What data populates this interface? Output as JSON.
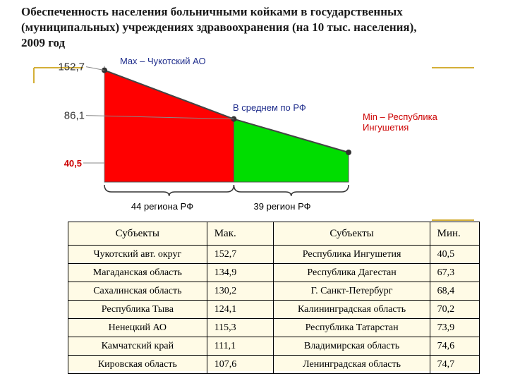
{
  "title_lines": [
    "Обеспеченность населения больничными койками в государственных",
    "(муниципальных) учреждениях здравоохранения (на 10 тыс. населения),",
    "2009 год"
  ],
  "chart_data": {
    "type": "area",
    "ylim": [
      0,
      160
    ],
    "x": [
      0,
      44,
      83
    ],
    "values": [
      152.7,
      86.1,
      40.5
    ],
    "tick_labels": [
      "152,7",
      "86,1",
      "40,5"
    ],
    "annotations": {
      "max": "Max – Чукотский АО",
      "avg": "В среднем по РФ",
      "min_line1": "Min – Республика",
      "min_line2": "Ингушетия"
    },
    "group_labels": [
      "44 региона РФ",
      "39 регион РФ"
    ],
    "colors": {
      "above": "#ff0000",
      "below": "#00dd00",
      "accent": "#d4af37",
      "min_label": "#cc0000",
      "avg_label": "#1f2d8c"
    }
  },
  "table": {
    "headers": [
      "Субъекты",
      "Мак.",
      "Субъекты",
      "Мин."
    ],
    "rows": [
      [
        "Чукотский авт. округ",
        "152,7",
        "Республика Ингушетия",
        "40,5"
      ],
      [
        "Магаданская область",
        "134,9",
        "Республика Дагестан",
        "67,3"
      ],
      [
        "Сахалинская область",
        "130,2",
        "Г. Санкт-Петербург",
        "68,4"
      ],
      [
        "Республика Тыва",
        "124,1",
        "Калининградская область",
        "70,2"
      ],
      [
        "Ненецкий АО",
        "115,3",
        "Республика Татарстан",
        "73,9"
      ],
      [
        "Камчатский край",
        "111,1",
        "Владимирская область",
        "74,6"
      ],
      [
        "Кировская область",
        "107,6",
        "Ленинградская область",
        "74,7"
      ]
    ]
  }
}
